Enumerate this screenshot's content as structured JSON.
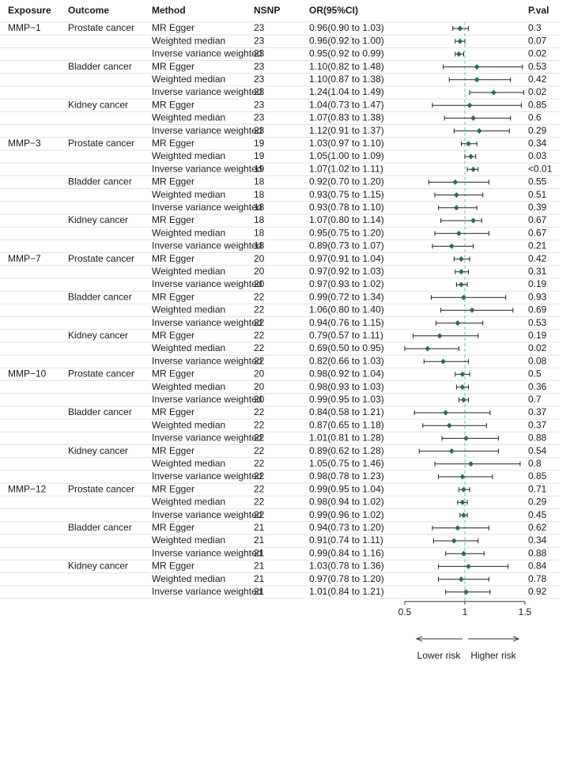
{
  "chart_data": {
    "type": "forest",
    "columns": [
      "Exposure",
      "Outcome",
      "Method",
      "NSNP",
      "OR(95%CI)",
      "P.val"
    ],
    "xlim": [
      0.5,
      1.5
    ],
    "xticks": [
      0.5,
      1,
      1.5
    ],
    "reference": 1,
    "annotations": [
      "Lower risk",
      "Higher risk"
    ],
    "color": "#2b6e52",
    "ci_color": "#222222",
    "reference_color": "#6cbcbf",
    "groups": [
      {
        "exposure": "MMP−1",
        "outcomes": [
          {
            "name": "Prostate cancer",
            "rows": [
              {
                "method": "MR Egger",
                "nsnp": 23,
                "or": 0.96,
                "lower": 0.9,
                "upper": 1.03,
                "or_label": "0.96(0.90 to 1.03)",
                "pval": 0.3
              },
              {
                "method": "Weighted median",
                "nsnp": 23,
                "or": 0.96,
                "lower": 0.92,
                "upper": 1.0,
                "or_label": "0.96(0.92 to 1.00)",
                "pval": 0.07
              },
              {
                "method": "Inverse variance weighted",
                "nsnp": 23,
                "or": 0.95,
                "lower": 0.92,
                "upper": 0.99,
                "or_label": "0.95(0.92 to 0.99)",
                "pval": 0.02
              }
            ]
          },
          {
            "name": "Bladder cancer",
            "rows": [
              {
                "method": "MR Egger",
                "nsnp": 23,
                "or": 1.1,
                "lower": 0.82,
                "upper": 1.48,
                "or_label": "1.10(0.82 to 1.48)",
                "pval": 0.53
              },
              {
                "method": "Weighted median",
                "nsnp": 23,
                "or": 1.1,
                "lower": 0.87,
                "upper": 1.38,
                "or_label": "1.10(0.87 to 1.38)",
                "pval": 0.42
              },
              {
                "method": "Inverse variance weighted",
                "nsnp": 23,
                "or": 1.24,
                "lower": 1.04,
                "upper": 1.49,
                "or_label": "1.24(1.04 to 1.49)",
                "pval": 0.02
              }
            ]
          },
          {
            "name": "Kidney cancer",
            "rows": [
              {
                "method": "MR Egger",
                "nsnp": 23,
                "or": 1.04,
                "lower": 0.73,
                "upper": 1.47,
                "or_label": "1.04(0.73 to 1.47)",
                "pval": 0.85
              },
              {
                "method": "Weighted median",
                "nsnp": 23,
                "or": 1.07,
                "lower": 0.83,
                "upper": 1.38,
                "or_label": "1.07(0.83 to 1.38)",
                "pval": 0.6
              },
              {
                "method": "Inverse variance weighted",
                "nsnp": 23,
                "or": 1.12,
                "lower": 0.91,
                "upper": 1.37,
                "or_label": "1.12(0.91 to 1.37)",
                "pval": 0.29
              }
            ]
          }
        ]
      },
      {
        "exposure": "MMP−3",
        "outcomes": [
          {
            "name": "Prostate cancer",
            "rows": [
              {
                "method": "MR Egger",
                "nsnp": 19,
                "or": 1.03,
                "lower": 0.97,
                "upper": 1.1,
                "or_label": "1.03(0.97 to 1.10)",
                "pval": 0.34
              },
              {
                "method": "Weighted median",
                "nsnp": 19,
                "or": 1.05,
                "lower": 1.0,
                "upper": 1.09,
                "or_label": "1.05(1.00 to 1.09)",
                "pval": 0.03
              },
              {
                "method": "Inverse variance weighted",
                "nsnp": 19,
                "or": 1.07,
                "lower": 1.02,
                "upper": 1.11,
                "or_label": "1.07(1.02 to 1.11)",
                "pval": "<0.01"
              }
            ]
          },
          {
            "name": "Bladder cancer",
            "rows": [
              {
                "method": "MR Egger",
                "nsnp": 18,
                "or": 0.92,
                "lower": 0.7,
                "upper": 1.2,
                "or_label": "0.92(0.70 to 1.20)",
                "pval": 0.55
              },
              {
                "method": "Weighted median",
                "nsnp": 18,
                "or": 0.93,
                "lower": 0.75,
                "upper": 1.15,
                "or_label": "0.93(0.75 to 1.15)",
                "pval": 0.51
              },
              {
                "method": "Inverse variance weighted",
                "nsnp": 18,
                "or": 0.93,
                "lower": 0.78,
                "upper": 1.1,
                "or_label": "0.93(0.78 to 1.10)",
                "pval": 0.39
              }
            ]
          },
          {
            "name": "Kidney cancer",
            "rows": [
              {
                "method": "MR Egger",
                "nsnp": 18,
                "or": 1.07,
                "lower": 0.8,
                "upper": 1.14,
                "or_label": "1.07(0.80 to 1.14)",
                "pval": 0.67
              },
              {
                "method": "Weighted median",
                "nsnp": 18,
                "or": 0.95,
                "lower": 0.75,
                "upper": 1.2,
                "or_label": "0.95(0.75 to 1.20)",
                "pval": 0.67
              },
              {
                "method": "Inverse variance weighted",
                "nsnp": 18,
                "or": 0.89,
                "lower": 0.73,
                "upper": 1.07,
                "or_label": "0.89(0.73 to 1.07)",
                "pval": 0.21
              }
            ]
          }
        ]
      },
      {
        "exposure": "MMP−7",
        "outcomes": [
          {
            "name": "Prostate cancer",
            "rows": [
              {
                "method": "MR Egger",
                "nsnp": 20,
                "or": 0.97,
                "lower": 0.91,
                "upper": 1.04,
                "or_label": "0.97(0.91 to 1.04)",
                "pval": 0.42
              },
              {
                "method": "Weighted median",
                "nsnp": 20,
                "or": 0.97,
                "lower": 0.92,
                "upper": 1.03,
                "or_label": "0.97(0.92 to 1.03)",
                "pval": 0.31
              },
              {
                "method": "Inverse variance weighted",
                "nsnp": 20,
                "or": 0.97,
                "lower": 0.93,
                "upper": 1.02,
                "or_label": "0.97(0.93 to 1.02)",
                "pval": 0.19
              }
            ]
          },
          {
            "name": "Bladder cancer",
            "rows": [
              {
                "method": "MR Egger",
                "nsnp": 22,
                "or": 0.99,
                "lower": 0.72,
                "upper": 1.34,
                "or_label": "0.99(0.72 to 1.34)",
                "pval": 0.93
              },
              {
                "method": "Weighted median",
                "nsnp": 22,
                "or": 1.06,
                "lower": 0.8,
                "upper": 1.4,
                "or_label": "1.06(0.80 to 1.40)",
                "pval": 0.69
              },
              {
                "method": "Inverse variance weighted",
                "nsnp": 22,
                "or": 0.94,
                "lower": 0.76,
                "upper": 1.15,
                "or_label": "0.94(0.76 to 1.15)",
                "pval": 0.53
              }
            ]
          },
          {
            "name": "Kidney cancer",
            "rows": [
              {
                "method": "MR Egger",
                "nsnp": 22,
                "or": 0.79,
                "lower": 0.57,
                "upper": 1.11,
                "or_label": "0.79(0.57 to 1.11)",
                "pval": 0.19
              },
              {
                "method": "Weighted median",
                "nsnp": 22,
                "or": 0.69,
                "lower": 0.5,
                "upper": 0.95,
                "or_label": "0.69(0.50 to 0.95)",
                "pval": 0.02
              },
              {
                "method": "Inverse variance weighted",
                "nsnp": 22,
                "or": 0.82,
                "lower": 0.66,
                "upper": 1.03,
                "or_label": "0.82(0.66 to 1.03)",
                "pval": 0.08
              }
            ]
          }
        ]
      },
      {
        "exposure": "MMP−10",
        "outcomes": [
          {
            "name": "Prostate cancer",
            "rows": [
              {
                "method": "MR Egger",
                "nsnp": 20,
                "or": 0.98,
                "lower": 0.92,
                "upper": 1.04,
                "or_label": "0.98(0.92 to 1.04)",
                "pval": 0.5
              },
              {
                "method": "Weighted median",
                "nsnp": 20,
                "or": 0.98,
                "lower": 0.93,
                "upper": 1.03,
                "or_label": "0.98(0.93 to 1.03)",
                "pval": 0.36
              },
              {
                "method": "Inverse variance weighted",
                "nsnp": 20,
                "or": 0.99,
                "lower": 0.95,
                "upper": 1.03,
                "or_label": "0.99(0.95 to 1.03)",
                "pval": 0.7
              }
            ]
          },
          {
            "name": "Bladder cancer",
            "rows": [
              {
                "method": "MR Egger",
                "nsnp": 22,
                "or": 0.84,
                "lower": 0.58,
                "upper": 1.21,
                "or_label": "0.84(0.58 to 1.21)",
                "pval": 0.37
              },
              {
                "method": "Weighted median",
                "nsnp": 22,
                "or": 0.87,
                "lower": 0.65,
                "upper": 1.18,
                "or_label": "0.87(0.65 to 1.18)",
                "pval": 0.37
              },
              {
                "method": "Inverse variance weighted",
                "nsnp": 22,
                "or": 1.01,
                "lower": 0.81,
                "upper": 1.28,
                "or_label": "1.01(0.81 to 1.28)",
                "pval": 0.88
              }
            ]
          },
          {
            "name": "Kidney cancer",
            "rows": [
              {
                "method": "MR Egger",
                "nsnp": 22,
                "or": 0.89,
                "lower": 0.62,
                "upper": 1.28,
                "or_label": "0.89(0.62 to 1.28)",
                "pval": 0.54
              },
              {
                "method": "Weighted median",
                "nsnp": 22,
                "or": 1.05,
                "lower": 0.75,
                "upper": 1.46,
                "or_label": "1.05(0.75 to 1.46)",
                "pval": 0.8
              },
              {
                "method": "Inverse variance weighted",
                "nsnp": 22,
                "or": 0.98,
                "lower": 0.78,
                "upper": 1.23,
                "or_label": "0.98(0.78 to 1.23)",
                "pval": 0.85
              }
            ]
          }
        ]
      },
      {
        "exposure": "MMP−12",
        "outcomes": [
          {
            "name": "Prostate cancer",
            "rows": [
              {
                "method": "MR Egger",
                "nsnp": 22,
                "or": 0.99,
                "lower": 0.95,
                "upper": 1.04,
                "or_label": "0.99(0.95 to 1.04)",
                "pval": 0.71
              },
              {
                "method": "Weighted median",
                "nsnp": 22,
                "or": 0.98,
                "lower": 0.94,
                "upper": 1.02,
                "or_label": "0.98(0.94 to 1.02)",
                "pval": 0.29
              },
              {
                "method": "Inverse variance weighted",
                "nsnp": 22,
                "or": 0.99,
                "lower": 0.96,
                "upper": 1.02,
                "or_label": "0.99(0.96 to 1.02)",
                "pval": 0.45
              }
            ]
          },
          {
            "name": "Bladder cancer",
            "rows": [
              {
                "method": "MR Egger",
                "nsnp": 21,
                "or": 0.94,
                "lower": 0.73,
                "upper": 1.2,
                "or_label": "0.94(0.73 to 1.20)",
                "pval": 0.62
              },
              {
                "method": "Weighted median",
                "nsnp": 21,
                "or": 0.91,
                "lower": 0.74,
                "upper": 1.11,
                "or_label": "0.91(0.74 to 1.11)",
                "pval": 0.34
              },
              {
                "method": "Inverse variance weighted",
                "nsnp": 21,
                "or": 0.99,
                "lower": 0.84,
                "upper": 1.16,
                "or_label": "0.99(0.84 to 1.16)",
                "pval": 0.88
              }
            ]
          },
          {
            "name": "Kidney cancer",
            "rows": [
              {
                "method": "MR Egger",
                "nsnp": 21,
                "or": 1.03,
                "lower": 0.78,
                "upper": 1.36,
                "or_label": "1.03(0.78 to 1.36)",
                "pval": 0.84
              },
              {
                "method": "Weighted median",
                "nsnp": 21,
                "or": 0.97,
                "lower": 0.78,
                "upper": 1.2,
                "or_label": "0.97(0.78 to 1.20)",
                "pval": 0.78
              },
              {
                "method": "Inverse variance weighted",
                "nsnp": 21,
                "or": 1.01,
                "lower": 0.84,
                "upper": 1.21,
                "or_label": "1.01(0.84 to 1.21)",
                "pval": 0.92
              }
            ]
          }
        ]
      }
    ]
  }
}
